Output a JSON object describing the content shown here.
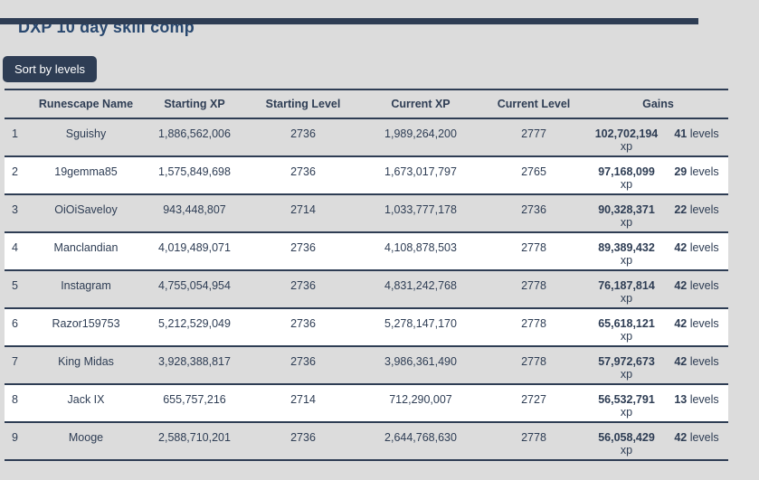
{
  "page": {
    "title": "DXP 10 day skill comp",
    "sort_button_label": "Sort by levels"
  },
  "colors": {
    "navy": "#2e3d54",
    "title_blue": "#29486f",
    "page_background": "#dcdcdc",
    "row_white": "#ffffff",
    "button_text": "#ffffff"
  },
  "table": {
    "headers": [
      "Runescape Name",
      "Starting XP",
      "Starting Level",
      "Current XP",
      "Current Level",
      "Gains"
    ],
    "gains_units": {
      "xp_label": "xp",
      "levels_label": "levels"
    },
    "rows": [
      {
        "rank": "1",
        "name": "Sguishy",
        "starting_xp": "1,886,562,006",
        "starting_level": "2736",
        "current_xp": "1,989,264,200",
        "current_level": "2777",
        "gain_xp": "102,702,194",
        "gain_levels": "41"
      },
      {
        "rank": "2",
        "name": "19gemma85",
        "starting_xp": "1,575,849,698",
        "starting_level": "2736",
        "current_xp": "1,673,017,797",
        "current_level": "2765",
        "gain_xp": "97,168,099",
        "gain_levels": "29"
      },
      {
        "rank": "3",
        "name": "OiOiSaveloy",
        "starting_xp": "943,448,807",
        "starting_level": "2714",
        "current_xp": "1,033,777,178",
        "current_level": "2736",
        "gain_xp": "90,328,371",
        "gain_levels": "22"
      },
      {
        "rank": "4",
        "name": "Manclandian",
        "starting_xp": "4,019,489,071",
        "starting_level": "2736",
        "current_xp": "4,108,878,503",
        "current_level": "2778",
        "gain_xp": "89,389,432",
        "gain_levels": "42"
      },
      {
        "rank": "5",
        "name": "Instagram",
        "starting_xp": "4,755,054,954",
        "starting_level": "2736",
        "current_xp": "4,831,242,768",
        "current_level": "2778",
        "gain_xp": "76,187,814",
        "gain_levels": "42"
      },
      {
        "rank": "6",
        "name": "Razor159753",
        "starting_xp": "5,212,529,049",
        "starting_level": "2736",
        "current_xp": "5,278,147,170",
        "current_level": "2778",
        "gain_xp": "65,618,121",
        "gain_levels": "42"
      },
      {
        "rank": "7",
        "name": "King Midas",
        "starting_xp": "3,928,388,817",
        "starting_level": "2736",
        "current_xp": "3,986,361,490",
        "current_level": "2778",
        "gain_xp": "57,972,673",
        "gain_levels": "42"
      },
      {
        "rank": "8",
        "name": "Jack IX",
        "starting_xp": "655,757,216",
        "starting_level": "2714",
        "current_xp": "712,290,007",
        "current_level": "2727",
        "gain_xp": "56,532,791",
        "gain_levels": "13"
      },
      {
        "rank": "9",
        "name": "Mooge",
        "starting_xp": "2,588,710,201",
        "starting_level": "2736",
        "current_xp": "2,644,768,630",
        "current_level": "2778",
        "gain_xp": "56,058,429",
        "gain_levels": "42"
      }
    ]
  }
}
